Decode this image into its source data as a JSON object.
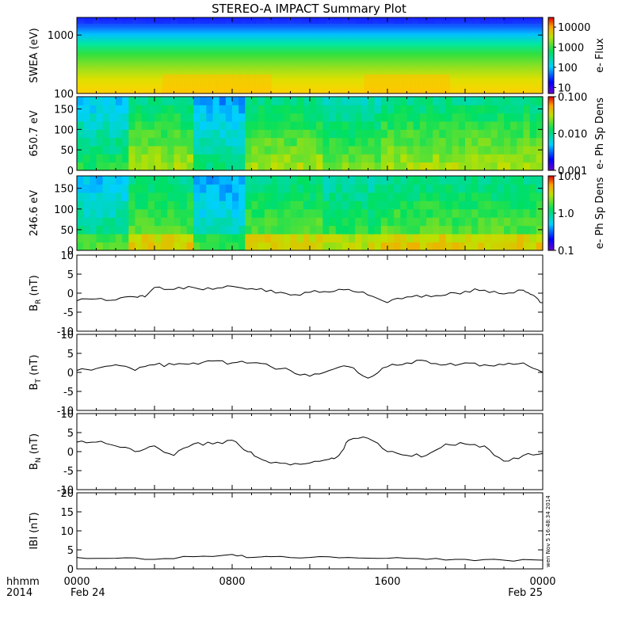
{
  "title": "STEREO-A IMPACT Summary Plot",
  "stamp": "wen Nov  5 16:48:34 2014",
  "x_axis": {
    "ticks": [
      "0000",
      "0800",
      "1600",
      "0000"
    ],
    "dates": [
      "Feb 24",
      "Feb 25"
    ],
    "corner_top": "hhmm",
    "corner_bottom": "2014"
  },
  "chart_data": [
    {
      "type": "heatmap",
      "name": "swea",
      "ylabel": "SWEA (eV)",
      "yscale": "log",
      "ylim": [
        100,
        2000
      ],
      "yticks": [
        "1000",
        "100"
      ],
      "colorbar": {
        "label": "e- Flux",
        "scale": "log",
        "range": [
          5,
          30000
        ],
        "ticks": [
          "10000",
          "1000",
          "100",
          "10"
        ]
      }
    },
    {
      "type": "heatmap",
      "name": "pad-650",
      "ylabel": "650.7 eV",
      "ylim": [
        0,
        180
      ],
      "yticks": [
        "150",
        "100",
        "50",
        "0"
      ],
      "colorbar": {
        "label": "e- Ph Sp Dens",
        "scale": "log",
        "range": [
          0.001,
          0.1
        ],
        "ticks": [
          "0.100",
          "0.010",
          "0.001"
        ]
      }
    },
    {
      "type": "heatmap",
      "name": "pad-246",
      "ylabel": "246.6 eV",
      "ylim": [
        0,
        180
      ],
      "yticks": [
        "150",
        "100",
        "50",
        "0"
      ],
      "colorbar": {
        "label": "e- Ph Sp Dens",
        "scale": "log",
        "range": [
          0.1,
          10
        ],
        "ticks": [
          "10.0",
          "1.0",
          "0.1"
        ]
      }
    },
    {
      "type": "line",
      "name": "br",
      "ylabel": "B",
      "ylabel_sub": "R",
      "ylabel_unit": "(nT)",
      "ylim": [
        -10,
        10
      ],
      "yticks": [
        "10",
        "5",
        "0",
        "-5",
        "-10"
      ],
      "x": [
        0,
        1,
        2,
        3,
        3.5,
        4,
        5,
        6,
        7,
        8,
        9,
        10,
        11,
        12,
        13,
        14,
        15,
        16,
        17,
        18,
        19,
        20,
        21,
        22,
        23,
        23.5,
        24
      ],
      "y": [
        -2,
        -1.5,
        -1.8,
        -1,
        -1,
        1.5,
        1,
        1.5,
        1,
        1.8,
        1.2,
        0.8,
        -0.5,
        0.2,
        0.3,
        1,
        -0.5,
        -2.5,
        -1,
        -0.5,
        -0.5,
        0.5,
        0.8,
        -0.2,
        0.8,
        -0.5,
        -2.5
      ]
    },
    {
      "type": "line",
      "name": "bt",
      "ylabel": "B",
      "ylabel_sub": "T",
      "ylabel_unit": "(nT)",
      "ylim": [
        -10,
        10
      ],
      "yticks": [
        "10",
        "5",
        "0",
        "-5",
        "-10"
      ],
      "x": [
        0,
        1,
        2,
        3,
        4,
        5,
        6,
        7,
        8,
        9,
        10,
        11,
        12,
        13,
        14,
        15,
        16,
        17,
        18,
        19,
        20,
        21,
        22,
        23,
        24
      ],
      "y": [
        0.5,
        1,
        2,
        0.5,
        2,
        2,
        2.5,
        3,
        2.5,
        2.5,
        1.5,
        0.5,
        -1,
        0.5,
        1.5,
        -1.5,
        1.5,
        2.5,
        3,
        2,
        2.5,
        2,
        2,
        2.5,
        0
      ]
    },
    {
      "type": "line",
      "name": "bn",
      "ylabel": "B",
      "ylabel_sub": "N",
      "ylabel_unit": "(nT)",
      "ylim": [
        -10,
        10
      ],
      "yticks": [
        "10",
        "5",
        "0",
        "-5",
        "-10"
      ],
      "x": [
        0,
        1,
        2,
        3,
        4,
        5,
        6,
        7,
        8,
        8.8,
        9.5,
        10,
        11,
        12,
        13,
        13.5,
        14,
        15,
        16,
        17,
        18,
        19,
        20,
        21,
        22,
        23,
        24
      ],
      "y": [
        2.5,
        2.5,
        1.5,
        0,
        1.5,
        -1,
        2,
        2,
        3,
        0,
        -2,
        -3,
        -3.5,
        -3,
        -2,
        -1,
        3,
        3.5,
        0,
        -1,
        -1,
        2,
        2,
        1.5,
        -2.5,
        -1,
        -0.5
      ]
    },
    {
      "type": "line",
      "name": "btot",
      "ylabel": "IBI",
      "ylabel_unit": "(nT)",
      "ylim": [
        0,
        20
      ],
      "yticks": [
        "20",
        "15",
        "10",
        "5",
        "0"
      ],
      "x": [
        0,
        2,
        4,
        6,
        8,
        9,
        10,
        12,
        14,
        16,
        18,
        20,
        22,
        24
      ],
      "y": [
        3,
        2.8,
        2.5,
        3.2,
        3.8,
        3,
        3.2,
        3,
        3,
        2.8,
        2.5,
        2.5,
        2.3,
        2.3
      ]
    }
  ]
}
